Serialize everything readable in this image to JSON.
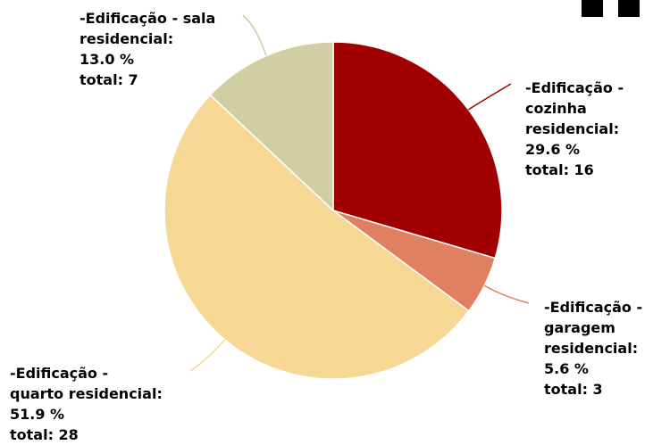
{
  "chart_data": {
    "type": "pie",
    "slices": [
      {
        "label": "-Edificação - cozinha residencial",
        "percent": 29.6,
        "total": 16,
        "color": "#a00000",
        "label_lines": [
          "-Edificação -",
          "cozinha",
          "residencial:",
          "29.6 %",
          "total: 16"
        ]
      },
      {
        "label": "-Edificação - garagem residencial",
        "percent": 5.6,
        "total": 3,
        "color": "#e08060",
        "label_lines": [
          "-Edificação -",
          "garagem",
          "residencial:",
          "5.6 %",
          "total: 3"
        ]
      },
      {
        "label": "-Edificação - quarto residencial",
        "percent": 51.9,
        "total": 28,
        "color": "#f6d794",
        "label_lines": [
          "-Edificação -",
          "quarto residencial:",
          "51.9 %",
          "total: 28"
        ]
      },
      {
        "label": "-Edificação - sala residencial",
        "percent": 13.0,
        "total": 7,
        "color": "#cfcfa3",
        "label_lines": [
          "-Edificação - sala",
          "residencial:",
          "13.0 %",
          "total: 7"
        ]
      }
    ]
  }
}
